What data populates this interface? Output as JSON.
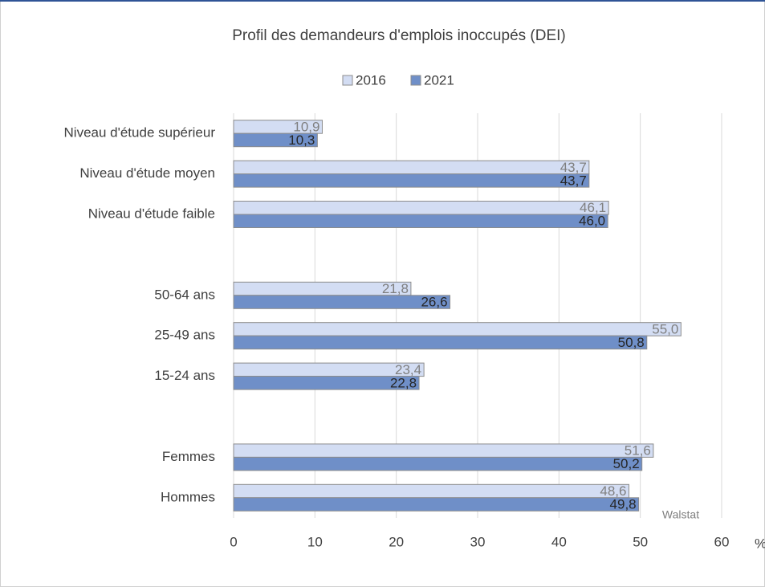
{
  "chart_data": {
    "type": "hbar",
    "title": "Profil des demandeurs d'emplois inoccupés (DEI)",
    "categories": [
      "Niveau d'étude supérieur",
      "Niveau d'étude moyen",
      "Niveau d'étude faible",
      null,
      "50-64 ans",
      "25-49 ans",
      "15-24 ans",
      null,
      "Femmes",
      "Hommes"
    ],
    "series": [
      {
        "name": "2016",
        "color": "#d3ddf3",
        "values": [
          10.9,
          43.7,
          46.1,
          null,
          21.8,
          55.0,
          23.4,
          null,
          51.6,
          48.6
        ],
        "value_labels": [
          "10,9",
          "43,7",
          "46,1",
          null,
          "21,8",
          "55,0",
          "23,4",
          null,
          "51,6",
          "48,6"
        ]
      },
      {
        "name": "2021",
        "color": "#6f8fc8",
        "values": [
          10.3,
          43.7,
          46.0,
          null,
          26.6,
          50.8,
          22.8,
          null,
          50.2,
          49.8
        ],
        "value_labels": [
          "10,3",
          "43,7",
          "46,0",
          null,
          "26,6",
          "50,8",
          "22,8",
          null,
          "50,2",
          "49,8"
        ]
      }
    ],
    "xlim": [
      0,
      60
    ],
    "xticks": [
      0,
      10,
      20,
      30,
      40,
      50,
      60
    ],
    "grid": true,
    "x_unit": "%",
    "source": "Walstat",
    "legend": "top"
  }
}
